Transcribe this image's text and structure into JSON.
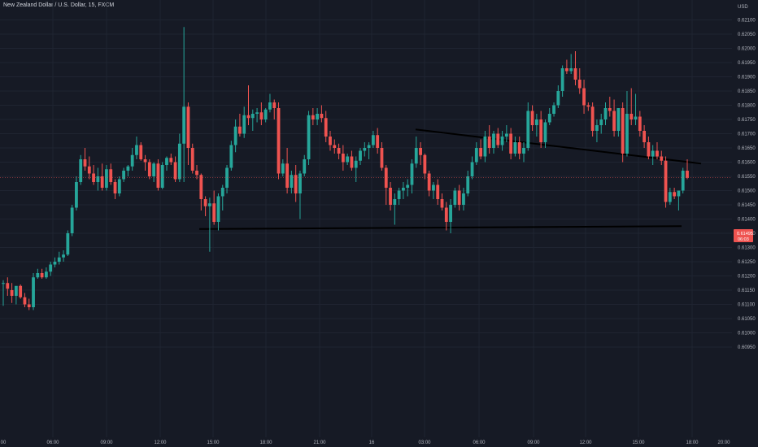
{
  "chart_data": {
    "type": "candlestick",
    "title": "New Zealand Dollar / U.S. Dollar, 15, FXCM",
    "currency": "USD",
    "ylim": [
      0.60925,
      0.62125
    ],
    "y_ticks": [
      "0.62100",
      "0.62050",
      "0.62000",
      "0.61950",
      "0.61900",
      "0.61850",
      "0.61800",
      "0.61750",
      "0.61700",
      "0.61650",
      "0.61600",
      "0.61550",
      "0.61500",
      "0.61450",
      "0.61400",
      "0.61350",
      "0.61300",
      "0.61250",
      "0.61200",
      "0.61150",
      "0.61100",
      "0.61050",
      "0.61000",
      "0.60950"
    ],
    "x_ticks": [
      "00",
      "06:00",
      "09:00",
      "12:00",
      "15:00",
      "18:00",
      "21:00",
      "16",
      "03:00",
      "06:00",
      "09:00",
      "12:00",
      "15:00",
      "18:00",
      "20:00"
    ],
    "last_price": "0.61495",
    "countdown": "06:03",
    "colors": {
      "background": "#161a25",
      "up": "#26a69a",
      "down": "#ef5350",
      "grid": "#1f2431",
      "trendline": "#000000"
    },
    "candles": [
      {
        "o": 0.61125,
        "h": 0.61135,
        "l": 0.61045,
        "c": 0.61125
      },
      {
        "o": 0.61125,
        "h": 0.61145,
        "l": 0.6108,
        "c": 0.61105
      },
      {
        "o": 0.611,
        "h": 0.61125,
        "l": 0.61055,
        "c": 0.6108
      },
      {
        "o": 0.6108,
        "h": 0.6111,
        "l": 0.6105,
        "c": 0.61115
      },
      {
        "o": 0.61115,
        "h": 0.6112,
        "l": 0.6107,
        "c": 0.61075
      },
      {
        "o": 0.61075,
        "h": 0.6109,
        "l": 0.6104,
        "c": 0.6105
      },
      {
        "o": 0.6105,
        "h": 0.6107,
        "l": 0.6103,
        "c": 0.6104
      },
      {
        "o": 0.6104,
        "h": 0.6116,
        "l": 0.6103,
        "c": 0.61145
      },
      {
        "o": 0.61145,
        "h": 0.61175,
        "l": 0.6114,
        "c": 0.6116
      },
      {
        "o": 0.6116,
        "h": 0.61175,
        "l": 0.6114,
        "c": 0.61145
      },
      {
        "o": 0.61145,
        "h": 0.6118,
        "l": 0.6114,
        "c": 0.61165
      },
      {
        "o": 0.61165,
        "h": 0.612,
        "l": 0.6115,
        "c": 0.6119
      },
      {
        "o": 0.6119,
        "h": 0.61215,
        "l": 0.6118,
        "c": 0.612
      },
      {
        "o": 0.612,
        "h": 0.61235,
        "l": 0.6119,
        "c": 0.61215
      },
      {
        "o": 0.61215,
        "h": 0.6124,
        "l": 0.612,
        "c": 0.61225
      },
      {
        "o": 0.61225,
        "h": 0.6131,
        "l": 0.6122,
        "c": 0.613
      },
      {
        "o": 0.613,
        "h": 0.614,
        "l": 0.6129,
        "c": 0.6139
      },
      {
        "o": 0.6139,
        "h": 0.615,
        "l": 0.6138,
        "c": 0.6148
      },
      {
        "o": 0.6148,
        "h": 0.61575,
        "l": 0.6147,
        "c": 0.6156
      },
      {
        "o": 0.6156,
        "h": 0.616,
        "l": 0.6152,
        "c": 0.61535
      },
      {
        "o": 0.61535,
        "h": 0.6157,
        "l": 0.6149,
        "c": 0.6151
      },
      {
        "o": 0.6151,
        "h": 0.6154,
        "l": 0.6147,
        "c": 0.6148
      },
      {
        "o": 0.6148,
        "h": 0.6153,
        "l": 0.6145,
        "c": 0.615
      },
      {
        "o": 0.615,
        "h": 0.61545,
        "l": 0.6145,
        "c": 0.6146
      },
      {
        "o": 0.6146,
        "h": 0.6154,
        "l": 0.6145,
        "c": 0.61525
      },
      {
        "o": 0.61525,
        "h": 0.61545,
        "l": 0.6147,
        "c": 0.6148
      },
      {
        "o": 0.6148,
        "h": 0.6149,
        "l": 0.6142,
        "c": 0.6144
      },
      {
        "o": 0.6144,
        "h": 0.615,
        "l": 0.6143,
        "c": 0.6149
      },
      {
        "o": 0.6149,
        "h": 0.6153,
        "l": 0.6148,
        "c": 0.6152
      },
      {
        "o": 0.6152,
        "h": 0.6154,
        "l": 0.615,
        "c": 0.61535
      },
      {
        "o": 0.61535,
        "h": 0.616,
        "l": 0.6152,
        "c": 0.61575
      },
      {
        "o": 0.61575,
        "h": 0.6164,
        "l": 0.6156,
        "c": 0.6161
      },
      {
        "o": 0.6161,
        "h": 0.6162,
        "l": 0.61555,
        "c": 0.6156
      },
      {
        "o": 0.6156,
        "h": 0.61575,
        "l": 0.6152,
        "c": 0.6155
      },
      {
        "o": 0.6155,
        "h": 0.6156,
        "l": 0.6149,
        "c": 0.615
      },
      {
        "o": 0.615,
        "h": 0.6155,
        "l": 0.6148,
        "c": 0.61545
      },
      {
        "o": 0.61545,
        "h": 0.6156,
        "l": 0.6145,
        "c": 0.6146
      },
      {
        "o": 0.6146,
        "h": 0.6155,
        "l": 0.61455,
        "c": 0.6154
      },
      {
        "o": 0.6154,
        "h": 0.6157,
        "l": 0.6152,
        "c": 0.61565
      },
      {
        "o": 0.61565,
        "h": 0.6158,
        "l": 0.6154,
        "c": 0.6155
      },
      {
        "o": 0.6155,
        "h": 0.6157,
        "l": 0.6148,
        "c": 0.6149
      },
      {
        "o": 0.6149,
        "h": 0.6165,
        "l": 0.6148,
        "c": 0.61615
      },
      {
        "o": 0.61615,
        "h": 0.62025,
        "l": 0.6148,
        "c": 0.61745
      },
      {
        "o": 0.61745,
        "h": 0.6176,
        "l": 0.6154,
        "c": 0.616
      },
      {
        "o": 0.616,
        "h": 0.61615,
        "l": 0.6151,
        "c": 0.6152
      },
      {
        "o": 0.6152,
        "h": 0.6154,
        "l": 0.6149,
        "c": 0.61505
      },
      {
        "o": 0.61505,
        "h": 0.6151,
        "l": 0.6138,
        "c": 0.6142
      },
      {
        "o": 0.6142,
        "h": 0.6143,
        "l": 0.6136,
        "c": 0.61395
      },
      {
        "o": 0.61395,
        "h": 0.61425,
        "l": 0.61235,
        "c": 0.61405
      },
      {
        "o": 0.61405,
        "h": 0.6145,
        "l": 0.6133,
        "c": 0.6134
      },
      {
        "o": 0.6134,
        "h": 0.6144,
        "l": 0.6131,
        "c": 0.6143
      },
      {
        "o": 0.6143,
        "h": 0.6147,
        "l": 0.6138,
        "c": 0.6146
      },
      {
        "o": 0.6146,
        "h": 0.6154,
        "l": 0.6144,
        "c": 0.6153
      },
      {
        "o": 0.6153,
        "h": 0.61625,
        "l": 0.6152,
        "c": 0.6161
      },
      {
        "o": 0.6161,
        "h": 0.617,
        "l": 0.61585,
        "c": 0.61675
      },
      {
        "o": 0.61675,
        "h": 0.6172,
        "l": 0.6164,
        "c": 0.6165
      },
      {
        "o": 0.6165,
        "h": 0.61745,
        "l": 0.61635,
        "c": 0.61715
      },
      {
        "o": 0.61715,
        "h": 0.6182,
        "l": 0.6168,
        "c": 0.61705
      },
      {
        "o": 0.61705,
        "h": 0.61735,
        "l": 0.6166,
        "c": 0.6172
      },
      {
        "o": 0.6172,
        "h": 0.6174,
        "l": 0.6169,
        "c": 0.61725
      },
      {
        "o": 0.61725,
        "h": 0.6176,
        "l": 0.6168,
        "c": 0.617
      },
      {
        "o": 0.617,
        "h": 0.6174,
        "l": 0.6169,
        "c": 0.61735
      },
      {
        "o": 0.61735,
        "h": 0.6179,
        "l": 0.61725,
        "c": 0.6176
      },
      {
        "o": 0.6176,
        "h": 0.6177,
        "l": 0.617,
        "c": 0.6174
      },
      {
        "o": 0.6174,
        "h": 0.6176,
        "l": 0.6149,
        "c": 0.6151
      },
      {
        "o": 0.6151,
        "h": 0.6156,
        "l": 0.615,
        "c": 0.61545
      },
      {
        "o": 0.61545,
        "h": 0.616,
        "l": 0.6144,
        "c": 0.6146
      },
      {
        "o": 0.6146,
        "h": 0.6152,
        "l": 0.6144,
        "c": 0.61505
      },
      {
        "o": 0.61505,
        "h": 0.6154,
        "l": 0.6141,
        "c": 0.6144
      },
      {
        "o": 0.6144,
        "h": 0.6152,
        "l": 0.6135,
        "c": 0.6151
      },
      {
        "o": 0.6151,
        "h": 0.61575,
        "l": 0.615,
        "c": 0.6156
      },
      {
        "o": 0.6156,
        "h": 0.6173,
        "l": 0.6154,
        "c": 0.61715
      },
      {
        "o": 0.61715,
        "h": 0.6174,
        "l": 0.6168,
        "c": 0.617
      },
      {
        "o": 0.617,
        "h": 0.6174,
        "l": 0.6168,
        "c": 0.6172
      },
      {
        "o": 0.6172,
        "h": 0.6175,
        "l": 0.6169,
        "c": 0.61705
      },
      {
        "o": 0.61705,
        "h": 0.6173,
        "l": 0.6162,
        "c": 0.6164
      },
      {
        "o": 0.6164,
        "h": 0.6166,
        "l": 0.6159,
        "c": 0.6161
      },
      {
        "o": 0.6161,
        "h": 0.6163,
        "l": 0.6158,
        "c": 0.616
      },
      {
        "o": 0.616,
        "h": 0.61615,
        "l": 0.6156,
        "c": 0.6158
      },
      {
        "o": 0.6158,
        "h": 0.6161,
        "l": 0.6152,
        "c": 0.6155
      },
      {
        "o": 0.6155,
        "h": 0.6158,
        "l": 0.6154,
        "c": 0.6157
      },
      {
        "o": 0.6157,
        "h": 0.6159,
        "l": 0.6152,
        "c": 0.6153
      },
      {
        "o": 0.6153,
        "h": 0.6157,
        "l": 0.6148,
        "c": 0.61555
      },
      {
        "o": 0.61555,
        "h": 0.616,
        "l": 0.6154,
        "c": 0.6159
      },
      {
        "o": 0.6159,
        "h": 0.6162,
        "l": 0.6157,
        "c": 0.616
      },
      {
        "o": 0.616,
        "h": 0.6162,
        "l": 0.6156,
        "c": 0.6161
      },
      {
        "o": 0.6161,
        "h": 0.6166,
        "l": 0.616,
        "c": 0.61645
      },
      {
        "o": 0.61645,
        "h": 0.6167,
        "l": 0.6158,
        "c": 0.616
      },
      {
        "o": 0.616,
        "h": 0.6162,
        "l": 0.6152,
        "c": 0.6153
      },
      {
        "o": 0.6153,
        "h": 0.6154,
        "l": 0.614,
        "c": 0.6146
      },
      {
        "o": 0.6146,
        "h": 0.6148,
        "l": 0.6138,
        "c": 0.614
      },
      {
        "o": 0.614,
        "h": 0.6144,
        "l": 0.6133,
        "c": 0.6142
      },
      {
        "o": 0.6142,
        "h": 0.6146,
        "l": 0.614,
        "c": 0.6145
      },
      {
        "o": 0.6145,
        "h": 0.6148,
        "l": 0.6142,
        "c": 0.6146
      },
      {
        "o": 0.6146,
        "h": 0.6149,
        "l": 0.6143,
        "c": 0.6147
      },
      {
        "o": 0.6147,
        "h": 0.6156,
        "l": 0.6144,
        "c": 0.61545
      },
      {
        "o": 0.61545,
        "h": 0.6164,
        "l": 0.6153,
        "c": 0.616
      },
      {
        "o": 0.616,
        "h": 0.6162,
        "l": 0.6154,
        "c": 0.61575
      },
      {
        "o": 0.61575,
        "h": 0.6158,
        "l": 0.6149,
        "c": 0.6151
      },
      {
        "o": 0.6151,
        "h": 0.6152,
        "l": 0.6143,
        "c": 0.6145
      },
      {
        "o": 0.6145,
        "h": 0.6148,
        "l": 0.6142,
        "c": 0.6147
      },
      {
        "o": 0.6147,
        "h": 0.6149,
        "l": 0.614,
        "c": 0.6142
      },
      {
        "o": 0.6142,
        "h": 0.6144,
        "l": 0.6138,
        "c": 0.6139
      },
      {
        "o": 0.6139,
        "h": 0.6141,
        "l": 0.6131,
        "c": 0.6134
      },
      {
        "o": 0.6134,
        "h": 0.6142,
        "l": 0.613,
        "c": 0.614
      },
      {
        "o": 0.614,
        "h": 0.6146,
        "l": 0.6139,
        "c": 0.6145
      },
      {
        "o": 0.6145,
        "h": 0.6147,
        "l": 0.6138,
        "c": 0.614
      },
      {
        "o": 0.614,
        "h": 0.6146,
        "l": 0.6138,
        "c": 0.6144
      },
      {
        "o": 0.6144,
        "h": 0.6152,
        "l": 0.6143,
        "c": 0.615
      },
      {
        "o": 0.615,
        "h": 0.6157,
        "l": 0.6149,
        "c": 0.6155
      },
      {
        "o": 0.6155,
        "h": 0.6162,
        "l": 0.6154,
        "c": 0.616
      },
      {
        "o": 0.616,
        "h": 0.6163,
        "l": 0.6156,
        "c": 0.6157
      },
      {
        "o": 0.6157,
        "h": 0.6166,
        "l": 0.6155,
        "c": 0.6164
      },
      {
        "o": 0.6164,
        "h": 0.6168,
        "l": 0.6158,
        "c": 0.616
      },
      {
        "o": 0.616,
        "h": 0.6166,
        "l": 0.6158,
        "c": 0.6165
      },
      {
        "o": 0.6165,
        "h": 0.6167,
        "l": 0.616,
        "c": 0.6161
      },
      {
        "o": 0.6161,
        "h": 0.6166,
        "l": 0.6159,
        "c": 0.6164
      },
      {
        "o": 0.6164,
        "h": 0.6168,
        "l": 0.6162,
        "c": 0.6165
      },
      {
        "o": 0.6165,
        "h": 0.6167,
        "l": 0.6156,
        "c": 0.6158
      },
      {
        "o": 0.6158,
        "h": 0.6164,
        "l": 0.6157,
        "c": 0.6162
      },
      {
        "o": 0.6162,
        "h": 0.6164,
        "l": 0.6156,
        "c": 0.6158
      },
      {
        "o": 0.6158,
        "h": 0.6162,
        "l": 0.6155,
        "c": 0.616
      },
      {
        "o": 0.616,
        "h": 0.6176,
        "l": 0.6159,
        "c": 0.6173
      },
      {
        "o": 0.6173,
        "h": 0.6175,
        "l": 0.6166,
        "c": 0.6168
      },
      {
        "o": 0.6168,
        "h": 0.6172,
        "l": 0.6164,
        "c": 0.617
      },
      {
        "o": 0.617,
        "h": 0.6173,
        "l": 0.616,
        "c": 0.6162
      },
      {
        "o": 0.6162,
        "h": 0.617,
        "l": 0.616,
        "c": 0.6169
      },
      {
        "o": 0.6169,
        "h": 0.6174,
        "l": 0.6168,
        "c": 0.6172
      },
      {
        "o": 0.6172,
        "h": 0.6176,
        "l": 0.6171,
        "c": 0.6175
      },
      {
        "o": 0.6175,
        "h": 0.6182,
        "l": 0.6174,
        "c": 0.618
      },
      {
        "o": 0.618,
        "h": 0.6189,
        "l": 0.6178,
        "c": 0.6188
      },
      {
        "o": 0.6188,
        "h": 0.6191,
        "l": 0.6186,
        "c": 0.6187
      },
      {
        "o": 0.6187,
        "h": 0.6193,
        "l": 0.6186,
        "c": 0.6188
      },
      {
        "o": 0.6188,
        "h": 0.6194,
        "l": 0.6182,
        "c": 0.6184
      },
      {
        "o": 0.6184,
        "h": 0.6188,
        "l": 0.6179,
        "c": 0.6181
      },
      {
        "o": 0.6181,
        "h": 0.6184,
        "l": 0.6172,
        "c": 0.6175
      },
      {
        "o": 0.6175,
        "h": 0.6176,
        "l": 0.6173,
        "c": 0.61745
      },
      {
        "o": 0.61745,
        "h": 0.6176,
        "l": 0.6164,
        "c": 0.6166
      },
      {
        "o": 0.6166,
        "h": 0.617,
        "l": 0.6162,
        "c": 0.6168
      },
      {
        "o": 0.6168,
        "h": 0.6172,
        "l": 0.6165,
        "c": 0.617
      },
      {
        "o": 0.617,
        "h": 0.6176,
        "l": 0.6168,
        "c": 0.6174
      },
      {
        "o": 0.6174,
        "h": 0.6178,
        "l": 0.6171,
        "c": 0.6173
      },
      {
        "o": 0.6173,
        "h": 0.6177,
        "l": 0.6164,
        "c": 0.6166
      },
      {
        "o": 0.6166,
        "h": 0.6174,
        "l": 0.6164,
        "c": 0.6174
      },
      {
        "o": 0.6174,
        "h": 0.6176,
        "l": 0.6155,
        "c": 0.6158
      },
      {
        "o": 0.6158,
        "h": 0.618,
        "l": 0.6157,
        "c": 0.6172
      },
      {
        "o": 0.6172,
        "h": 0.6181,
        "l": 0.6168,
        "c": 0.617
      },
      {
        "o": 0.617,
        "h": 0.6179,
        "l": 0.6168,
        "c": 0.6171
      },
      {
        "o": 0.6171,
        "h": 0.6173,
        "l": 0.6164,
        "c": 0.6166
      },
      {
        "o": 0.6166,
        "h": 0.6168,
        "l": 0.616,
        "c": 0.6162
      },
      {
        "o": 0.6162,
        "h": 0.6164,
        "l": 0.6156,
        "c": 0.6157
      },
      {
        "o": 0.6157,
        "h": 0.6161,
        "l": 0.6154,
        "c": 0.6159
      },
      {
        "o": 0.6159,
        "h": 0.6162,
        "l": 0.6156,
        "c": 0.6157
      },
      {
        "o": 0.6157,
        "h": 0.6159,
        "l": 0.6154,
        "c": 0.61555
      },
      {
        "o": 0.61555,
        "h": 0.6157,
        "l": 0.6139,
        "c": 0.6141
      },
      {
        "o": 0.6141,
        "h": 0.6146,
        "l": 0.614,
        "c": 0.61445
      },
      {
        "o": 0.61445,
        "h": 0.6146,
        "l": 0.6142,
        "c": 0.6143
      },
      {
        "o": 0.6143,
        "h": 0.6144,
        "l": 0.6138,
        "c": 0.6145
      },
      {
        "o": 0.6145,
        "h": 0.6153,
        "l": 0.6144,
        "c": 0.6152
      },
      {
        "o": 0.6152,
        "h": 0.6156,
        "l": 0.6149,
        "c": 0.61495
      }
    ],
    "trendlines": [
      {
        "from": [
          "12:00",
          0.61315
        ],
        "to": [
          "18:00",
          0.61325
        ]
      },
      {
        "from": [
          "00:00",
          0.61665
        ],
        "to": [
          "18:00",
          0.61545
        ]
      }
    ]
  }
}
